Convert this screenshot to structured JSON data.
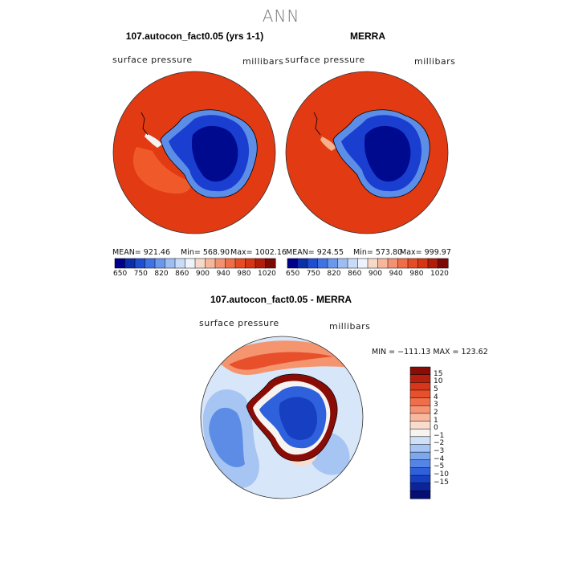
{
  "main_title": "ANN",
  "panels": [
    {
      "title": "107.autocon_fact0.05 (yrs 1-1)",
      "left_label": "surface pressure",
      "right_label": "millibars",
      "stats": {
        "mean": "MEAN= 921.46",
        "min": "Min= 568.90",
        "max": "Max= 1002.16"
      }
    },
    {
      "title": "MERRA",
      "left_label": "surface pressure",
      "right_label": "millibars",
      "stats": {
        "mean": "MEAN= 924.55",
        "min": "Min= 573.80",
        "max": "Max= 999.97"
      }
    }
  ],
  "top_colorbar": {
    "colors": [
      "#00008a",
      "#0a2fa8",
      "#1f4fd0",
      "#3f73e3",
      "#6b98ec",
      "#9ebdf3",
      "#c8dbf8",
      "#eef3fb",
      "#f8d8c8",
      "#f7b79a",
      "#f49170",
      "#ef6e47",
      "#e54b25",
      "#d63613",
      "#b21d0a",
      "#7e0a05"
    ],
    "tick_labels": [
      "650",
      "750",
      "820",
      "860",
      "900",
      "940",
      "980",
      "1020"
    ]
  },
  "diff_panel": {
    "title": "107.autocon_fact0.05 - MERRA",
    "left_label": "surface pressure",
    "right_label": "millibars",
    "minmax": "MIN = −111.13 MAX = 123.62",
    "colorbar": {
      "colors": [
        "#8a0c07",
        "#b51f0f",
        "#d6361a",
        "#e8502c",
        "#f06f4a",
        "#f59373",
        "#f8b89e",
        "#fadccd",
        "#f6f3f0",
        "#cfe0f7",
        "#a7c5f2",
        "#7ea7ec",
        "#5485e6",
        "#2f61dc",
        "#173fc2",
        "#0c249a",
        "#050e72"
      ],
      "tick_labels": [
        "15",
        "10",
        "5",
        "4",
        "3",
        "2",
        "1",
        "0",
        "−1",
        "−2",
        "−3",
        "−4",
        "−5",
        "−10",
        "−15"
      ]
    }
  },
  "map_colors": {
    "ocean_red": "#e23a12",
    "ocean_orange": "#f05a2a",
    "land_deep": "#000a8f",
    "land_mid": "#1a3fd0",
    "land_light": "#5c8ee8",
    "diff_pale": "#d8e6fa",
    "diff_light": "#a9c6f2",
    "diff_mid": "#5c8ce6"
  }
}
